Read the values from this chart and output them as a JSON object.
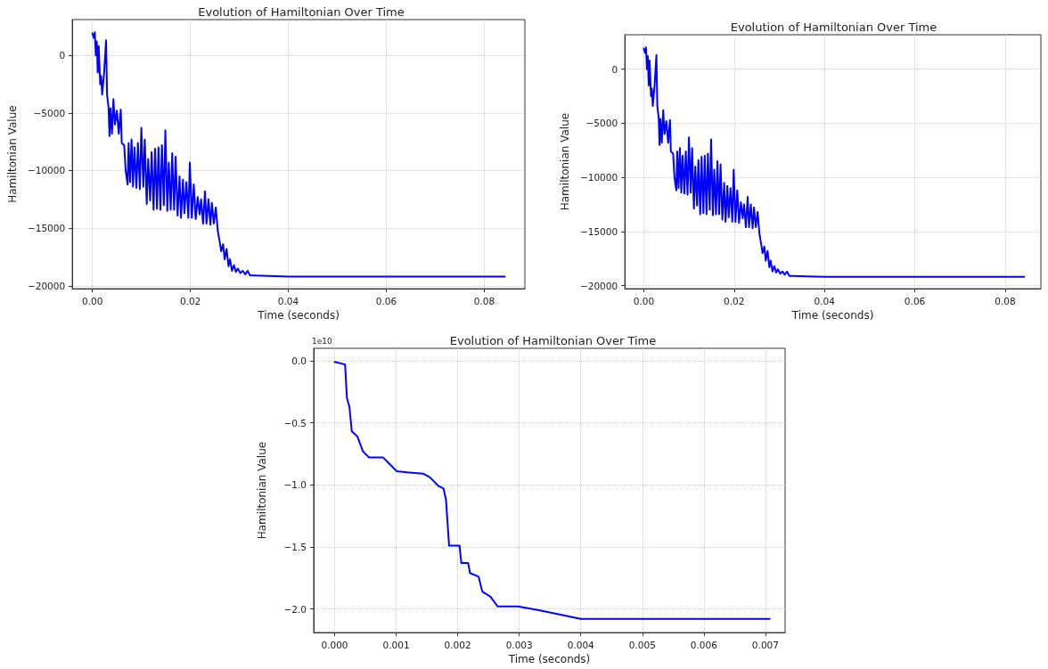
{
  "chart_data": [
    {
      "type": "line",
      "title": "Evolution of Hamiltonian Over Time",
      "xlabel": "Time (seconds)",
      "ylabel": "Hamiltonian Value",
      "xlim": [
        -0.0041,
        0.0883
      ],
      "ylim": [
        -20250,
        3100
      ],
      "xticks": [
        {
          "value": 0,
          "label": "0.00"
        },
        {
          "value": 0.02,
          "label": "0.02"
        },
        {
          "value": 0.04,
          "label": "0.04"
        },
        {
          "value": 0.06,
          "label": "0.06"
        },
        {
          "value": 0.08,
          "label": "0.08"
        }
      ],
      "yticks": [
        {
          "value": -20000,
          "label": "−20000"
        },
        {
          "value": -15000,
          "label": "−15000"
        },
        {
          "value": -10000,
          "label": "−10000"
        },
        {
          "value": -5000,
          "label": "−5000"
        },
        0
      ],
      "grid": true,
      "marker": "none",
      "line_style": "solid",
      "series": [
        {
          "color": "#0000ff",
          "x": [
            0,
            0.0003,
            0.0005,
            0.0007,
            0.0009,
            0.0011,
            0.0013,
            0.0016,
            0.0018,
            0.002,
            0.0024,
            0.0028,
            0.003,
            0.0033,
            0.0035,
            0.0037,
            0.004,
            0.0043,
            0.0046,
            0.005,
            0.0054,
            0.0058,
            0.006,
            0.0065,
            0.0068,
            0.0072,
            0.0074,
            0.0077,
            0.008,
            0.0083,
            0.0086,
            0.009,
            0.0093,
            0.0097,
            0.01,
            0.0104,
            0.0107,
            0.0111,
            0.0114,
            0.0118,
            0.0121,
            0.0125,
            0.0128,
            0.0132,
            0.0135,
            0.0139,
            0.0142,
            0.0146,
            0.0149,
            0.0153,
            0.0156,
            0.016,
            0.0163,
            0.0167,
            0.017,
            0.0174,
            0.0178,
            0.0181,
            0.0185,
            0.0188,
            0.0192,
            0.0196,
            0.0199,
            0.0203,
            0.0207,
            0.0211,
            0.0215,
            0.0219,
            0.0222,
            0.0226,
            0.023,
            0.0233,
            0.0237,
            0.0241,
            0.0244,
            0.0248,
            0.0252,
            0.0256,
            0.026,
            0.0263,
            0.0267,
            0.027,
            0.0274,
            0.0278,
            0.0281,
            0.0285,
            0.0289,
            0.0293,
            0.0297,
            0.0302,
            0.0307,
            0.0312,
            0.0317,
            0.0322,
            0.033,
            0.036,
            0.04,
            0.0842
          ],
          "values": [
            1900,
            1500,
            2000,
            0,
            1200,
            -1500,
            800,
            -2500,
            -1800,
            -3400,
            -1500,
            1300,
            -3400,
            -4500,
            -7000,
            -4600,
            -6800,
            -3800,
            -6000,
            -4800,
            -6800,
            -4700,
            -7600,
            -7800,
            -10000,
            -11200,
            -7600,
            -11000,
            -7300,
            -11400,
            -8000,
            -11500,
            -7600,
            -11600,
            -6300,
            -11400,
            -7300,
            -12900,
            -9000,
            -12600,
            -8400,
            -13400,
            -8100,
            -13300,
            -8000,
            -13400,
            -7800,
            -13000,
            -6500,
            -13500,
            -9300,
            -13400,
            -8500,
            -13400,
            -8800,
            -13900,
            -10500,
            -14100,
            -10800,
            -13700,
            -11000,
            -14100,
            -9300,
            -14100,
            -11200,
            -14200,
            -12300,
            -13800,
            -12500,
            -14600,
            -11800,
            -14600,
            -12500,
            -14700,
            -12800,
            -14600,
            -13200,
            -15200,
            -16200,
            -17000,
            -16400,
            -17700,
            -16800,
            -18300,
            -17700,
            -18700,
            -18200,
            -18800,
            -18500,
            -18900,
            -18700,
            -19000,
            -18700,
            -19100,
            -19100,
            -19150,
            -19200,
            -19200
          ]
        }
      ]
    },
    {
      "type": "line",
      "title": "Evolution of Hamiltonian Over Time",
      "xlabel": "Time (seconds)",
      "ylabel": "Hamiltonian Value",
      "xlim": [
        -0.0042,
        0.0879
      ],
      "ylim": [
        -20290,
        3180
      ],
      "xticks": [
        {
          "value": 0,
          "label": "0.00"
        },
        {
          "value": 0.02,
          "label": "0.02"
        },
        {
          "value": 0.04,
          "label": "0.04"
        },
        {
          "value": 0.06,
          "label": "0.06"
        },
        {
          "value": 0.08,
          "label": "0.08"
        }
      ],
      "yticks": [
        {
          "value": -20000,
          "label": "−20000"
        },
        {
          "value": -15000,
          "label": "−15000"
        },
        {
          "value": -10000,
          "label": "−10000"
        },
        {
          "value": -5000,
          "label": "−5000"
        },
        0
      ],
      "grid": true,
      "marker": "none",
      "line_style": "solid",
      "series": [
        {
          "color": "#0000ff",
          "x": [
            0,
            0.0003,
            0.0005,
            0.0007,
            0.0009,
            0.0011,
            0.0013,
            0.0016,
            0.0018,
            0.002,
            0.0024,
            0.0028,
            0.003,
            0.0033,
            0.0035,
            0.0037,
            0.004,
            0.0043,
            0.0046,
            0.005,
            0.0054,
            0.0058,
            0.006,
            0.0065,
            0.0068,
            0.0072,
            0.0074,
            0.0077,
            0.008,
            0.0083,
            0.0086,
            0.009,
            0.0093,
            0.0097,
            0.01,
            0.0104,
            0.0107,
            0.0111,
            0.0114,
            0.0118,
            0.0121,
            0.0125,
            0.0128,
            0.0132,
            0.0135,
            0.0139,
            0.0142,
            0.0146,
            0.0149,
            0.0153,
            0.0156,
            0.016,
            0.0163,
            0.0167,
            0.017,
            0.0174,
            0.0178,
            0.0181,
            0.0185,
            0.0188,
            0.0192,
            0.0196,
            0.0199,
            0.0203,
            0.0207,
            0.0211,
            0.0215,
            0.0219,
            0.0222,
            0.0226,
            0.023,
            0.0233,
            0.0237,
            0.0241,
            0.0244,
            0.0248,
            0.0252,
            0.0256,
            0.026,
            0.0263,
            0.0267,
            0.027,
            0.0274,
            0.0278,
            0.0281,
            0.0285,
            0.0289,
            0.0293,
            0.0297,
            0.0302,
            0.0307,
            0.0312,
            0.0317,
            0.0322,
            0.033,
            0.036,
            0.04,
            0.0842
          ],
          "values": [
            1900,
            1500,
            2000,
            0,
            1200,
            -1500,
            800,
            -2500,
            -1800,
            -3400,
            -1500,
            1300,
            -3400,
            -4500,
            -7000,
            -4600,
            -6800,
            -3800,
            -6000,
            -4800,
            -6800,
            -4700,
            -7600,
            -7800,
            -10000,
            -11200,
            -7600,
            -11000,
            -7300,
            -11400,
            -8000,
            -11500,
            -7600,
            -11600,
            -6300,
            -11400,
            -7300,
            -12900,
            -9000,
            -12600,
            -8400,
            -13400,
            -8100,
            -13300,
            -8000,
            -13400,
            -7800,
            -13000,
            -6500,
            -13500,
            -9300,
            -13400,
            -8500,
            -13400,
            -8800,
            -13900,
            -10500,
            -14100,
            -10800,
            -13700,
            -11000,
            -14100,
            -9300,
            -14100,
            -11200,
            -14200,
            -12300,
            -13800,
            -12500,
            -14600,
            -11800,
            -14600,
            -12500,
            -14700,
            -12800,
            -14600,
            -13200,
            -15200,
            -16200,
            -17000,
            -16400,
            -17700,
            -16800,
            -18300,
            -17700,
            -18700,
            -18200,
            -18800,
            -18500,
            -18900,
            -18700,
            -19000,
            -18700,
            -19100,
            -19100,
            -19150,
            -19200,
            -19200
          ]
        }
      ]
    },
    {
      "type": "line",
      "title": "Evolution of Hamiltonian Over Time",
      "xlabel": "Time (seconds)",
      "ylabel": "Hamiltonian Value",
      "annotations": [
        "1e10"
      ],
      "xlim": [
        -0.00034,
        0.00732
      ],
      "ylim": [
        -2.19,
        0.1
      ],
      "xticks": [
        {
          "value": 0,
          "label": "0.000"
        },
        0.001,
        0.002,
        0.003,
        0.004,
        0.005,
        0.006,
        0.007
      ],
      "yticks": [
        {
          "value": -2,
          "label": "−2.0"
        },
        {
          "value": -1.5,
          "label": "−1.5"
        },
        {
          "value": -1,
          "label": "−1.0"
        },
        {
          "value": -0.5,
          "label": "−0.5"
        },
        {
          "value": 0,
          "label": "0.0"
        }
      ],
      "grid": true,
      "marker": "none",
      "line_style": "solid",
      "series": [
        {
          "color": "#0000ff",
          "x": [
            0,
            0.00017,
            0.0002,
            0.00024,
            0.00028,
            0.00037,
            0.00046,
            0.00056,
            0.00079,
            0.00087,
            0.00101,
            0.00118,
            0.00144,
            0.00155,
            0.00169,
            0.00177,
            0.00181,
            0.00186,
            0.00203,
            0.00206,
            0.00217,
            0.0022,
            0.00234,
            0.0024,
            0.00253,
            0.00265,
            0.00298,
            0.00332,
            0.004,
            0.00707
          ],
          "values": [
            -0.01,
            -0.03,
            -0.3,
            -0.37,
            -0.57,
            -0.61,
            -0.73,
            -0.78,
            -0.78,
            -0.82,
            -0.89,
            -0.9,
            -0.91,
            -0.94,
            -1.01,
            -1.03,
            -1.12,
            -1.49,
            -1.49,
            -1.63,
            -1.63,
            -1.71,
            -1.74,
            -1.86,
            -1.9,
            -1.98,
            -1.98,
            -2.01,
            -2.08,
            -2.08
          ]
        }
      ]
    }
  ]
}
